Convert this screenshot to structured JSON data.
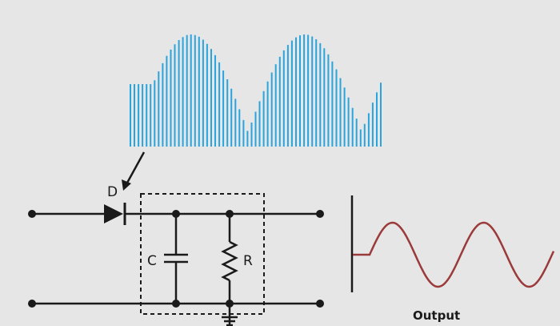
{
  "labels": {
    "diode": "D",
    "capacitor": "C",
    "resistor": "R",
    "output": "Output"
  },
  "colors": {
    "background": "#e6e6e6",
    "pulse_bars": "#2aa4dc",
    "wire": "#1a1a1a",
    "output_wave": "#9b3a3a"
  }
}
